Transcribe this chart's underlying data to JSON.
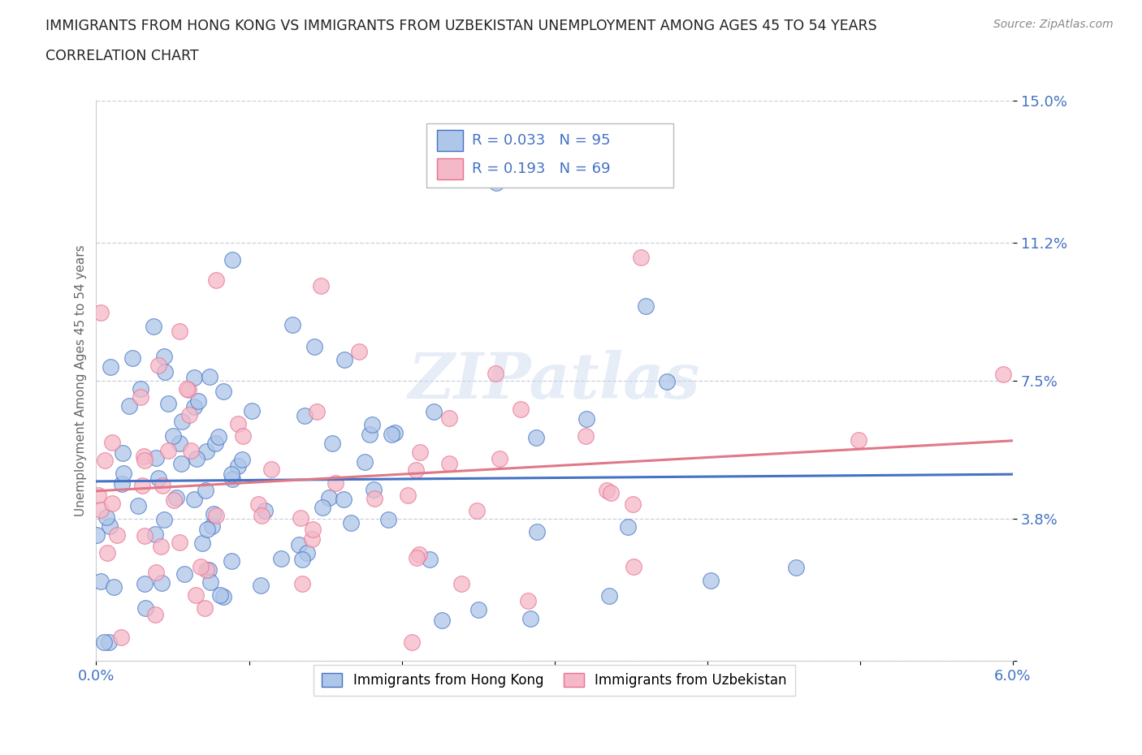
{
  "title_line1": "IMMIGRANTS FROM HONG KONG VS IMMIGRANTS FROM UZBEKISTAN UNEMPLOYMENT AMONG AGES 45 TO 54 YEARS",
  "title_line2": "CORRELATION CHART",
  "source": "Source: ZipAtlas.com",
  "ylabel": "Unemployment Among Ages 45 to 54 years",
  "xmin": 0.0,
  "xmax": 0.06,
  "ymin": 0.0,
  "ymax": 0.15,
  "ytick_vals": [
    0.0,
    0.038,
    0.075,
    0.112,
    0.15
  ],
  "ytick_labels": [
    "",
    "3.8%",
    "7.5%",
    "11.2%",
    "15.0%"
  ],
  "xtick_vals": [
    0.0,
    0.01,
    0.02,
    0.03,
    0.04,
    0.05,
    0.06
  ],
  "xtick_labels": [
    "0.0%",
    "",
    "",
    "",
    "",
    "",
    "6.0%"
  ],
  "hk_fill_color": "#aec6e8",
  "hk_edge_color": "#4472c4",
  "uz_fill_color": "#f4b8c8",
  "uz_edge_color": "#e87090",
  "hk_line_color": "#4472c4",
  "uz_line_color": "#e07888",
  "hk_R": 0.033,
  "hk_N": 95,
  "uz_R": 0.193,
  "uz_N": 69,
  "watermark": "ZIPatlas",
  "legend_label_hk": "Immigrants from Hong Kong",
  "legend_label_uz": "Immigrants from Uzbekistan",
  "title_color": "#222222",
  "source_color": "#888888",
  "label_color": "#4472c4",
  "tick_color": "#4472c4",
  "ylabel_color": "#666666",
  "background_color": "#ffffff",
  "grid_color": "#c8d0dc",
  "spine_color": "#cccccc"
}
